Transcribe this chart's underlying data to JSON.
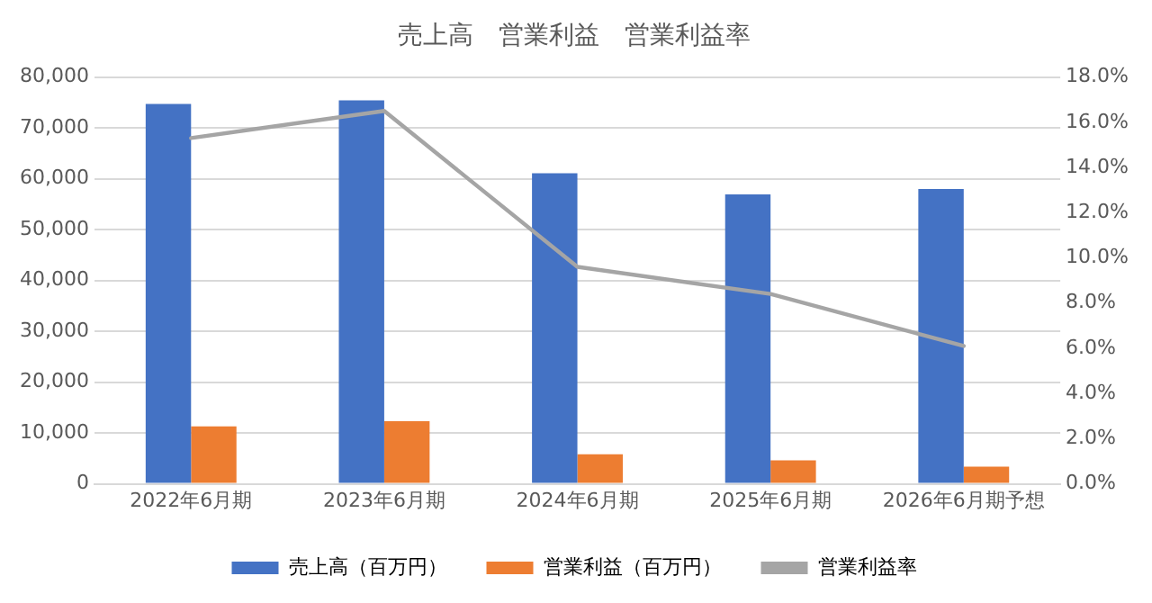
{
  "chart_data": {
    "type": "bar",
    "title": "売上高　営業利益　営業利益率",
    "categories": [
      "2022年6月期",
      "2023年6月期",
      "2024年6月期",
      "2025年6月期",
      "2026年6月期予想"
    ],
    "series": [
      {
        "name": "売上高（百万円）",
        "color": "#4472c4",
        "values": [
          74700,
          75400,
          61100,
          56900,
          58000
        ]
      },
      {
        "name": "営業利益（百万円）",
        "color": "#ed7d31",
        "values": [
          11300,
          12300,
          5800,
          4600,
          3400
        ]
      },
      {
        "name": "営業利益率",
        "type": "line",
        "axis": "y2",
        "color": "#a5a5a5",
        "marker": "none",
        "values": [
          15.3,
          16.5,
          9.6,
          8.4,
          6.1
        ]
      }
    ],
    "ylim": [
      0,
      80000
    ],
    "yticks": [
      {
        "value": 0,
        "label": "0"
      },
      {
        "value": 10000,
        "label": "10,000"
      },
      {
        "value": 20000,
        "label": "20,000"
      },
      {
        "value": 30000,
        "label": "30,000"
      },
      {
        "value": 40000,
        "label": "40,000"
      },
      {
        "value": 50000,
        "label": "50,000"
      },
      {
        "value": 60000,
        "label": "60,000"
      },
      {
        "value": 70000,
        "label": "70,000"
      },
      {
        "value": 80000,
        "label": "80,000"
      }
    ],
    "y2lim": [
      0,
      18
    ],
    "y2ticks": [
      {
        "value": 0,
        "label": "0.0%"
      },
      {
        "value": 2,
        "label": "2.0%"
      },
      {
        "value": 4,
        "label": "4.0%"
      },
      {
        "value": 6,
        "label": "6.0%"
      },
      {
        "value": 8,
        "label": "8.0%"
      },
      {
        "value": 10,
        "label": "10.0%"
      },
      {
        "value": 12,
        "label": "12.0%"
      },
      {
        "value": 14,
        "label": "14.0%"
      },
      {
        "value": 16,
        "label": "16.0%"
      },
      {
        "value": 18,
        "label": "18.0%"
      }
    ],
    "grid": "y",
    "legend": "bottom"
  }
}
